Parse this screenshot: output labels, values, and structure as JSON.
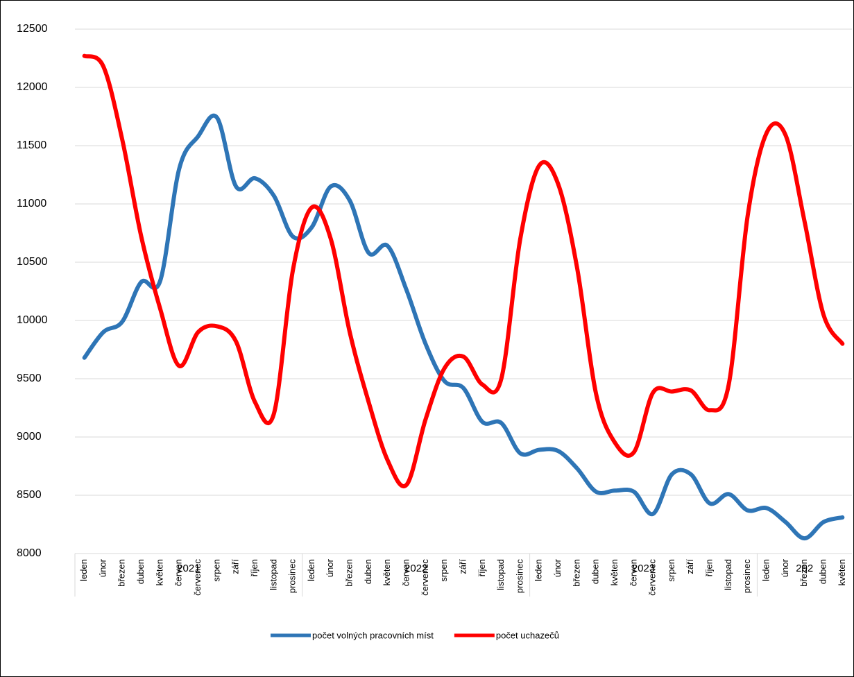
{
  "chart_data": {
    "type": "line",
    "categories": [
      "leden",
      "únor",
      "březen",
      "duben",
      "květen",
      "červen",
      "červenec",
      "srpen",
      "září",
      "říjen",
      "listopad",
      "prosinec",
      "leden",
      "únor",
      "březen",
      "duben",
      "květen",
      "červen",
      "červenec",
      "srpen",
      "září",
      "říjen",
      "listopad",
      "prosinec",
      "leden",
      "únor",
      "březen",
      "duben",
      "květen",
      "červen",
      "červenec",
      "srpen",
      "září",
      "říjen",
      "listopad",
      "prosinec",
      "leden",
      "únor",
      "březen",
      "duben",
      "květen"
    ],
    "groups": [
      {
        "label": "2021",
        "size": 12
      },
      {
        "label": "2022",
        "size": 12
      },
      {
        "label": "2023",
        "size": 12
      },
      {
        "label": "202",
        "size": 5
      }
    ],
    "series": [
      {
        "name": "počet volných pracovních míst",
        "color": "#2e75b6",
        "values": [
          9680,
          9900,
          9990,
          10330,
          10340,
          11300,
          11580,
          11740,
          11150,
          11220,
          11070,
          10720,
          10800,
          11150,
          11030,
          10580,
          10640,
          10260,
          9800,
          9480,
          9420,
          9130,
          9120,
          8860,
          8890,
          8880,
          8730,
          8530,
          8540,
          8530,
          8340,
          8680,
          8680,
          8430,
          8510,
          8370,
          8390,
          8270,
          8130,
          8270,
          8310
        ]
      },
      {
        "name": "počet uchazečů",
        "color": "#ff0000",
        "values": [
          12270,
          12180,
          11550,
          10720,
          10100,
          9610,
          9900,
          9950,
          9820,
          9300,
          9200,
          10430,
          10970,
          10700,
          9900,
          9300,
          8800,
          8590,
          9150,
          9590,
          9690,
          9450,
          9500,
          10700,
          11330,
          11170,
          10450,
          9370,
          8950,
          8870,
          9380,
          9390,
          9400,
          9230,
          9450,
          10900,
          11610,
          11590,
          10850,
          10050,
          9800
        ]
      }
    ],
    "ylim": [
      8000,
      12500
    ],
    "yticks": [
      8000,
      8500,
      9000,
      9500,
      10000,
      10500,
      11000,
      11500,
      12000,
      12500
    ],
    "grid": true,
    "legend": "bottom",
    "smooth": true
  }
}
